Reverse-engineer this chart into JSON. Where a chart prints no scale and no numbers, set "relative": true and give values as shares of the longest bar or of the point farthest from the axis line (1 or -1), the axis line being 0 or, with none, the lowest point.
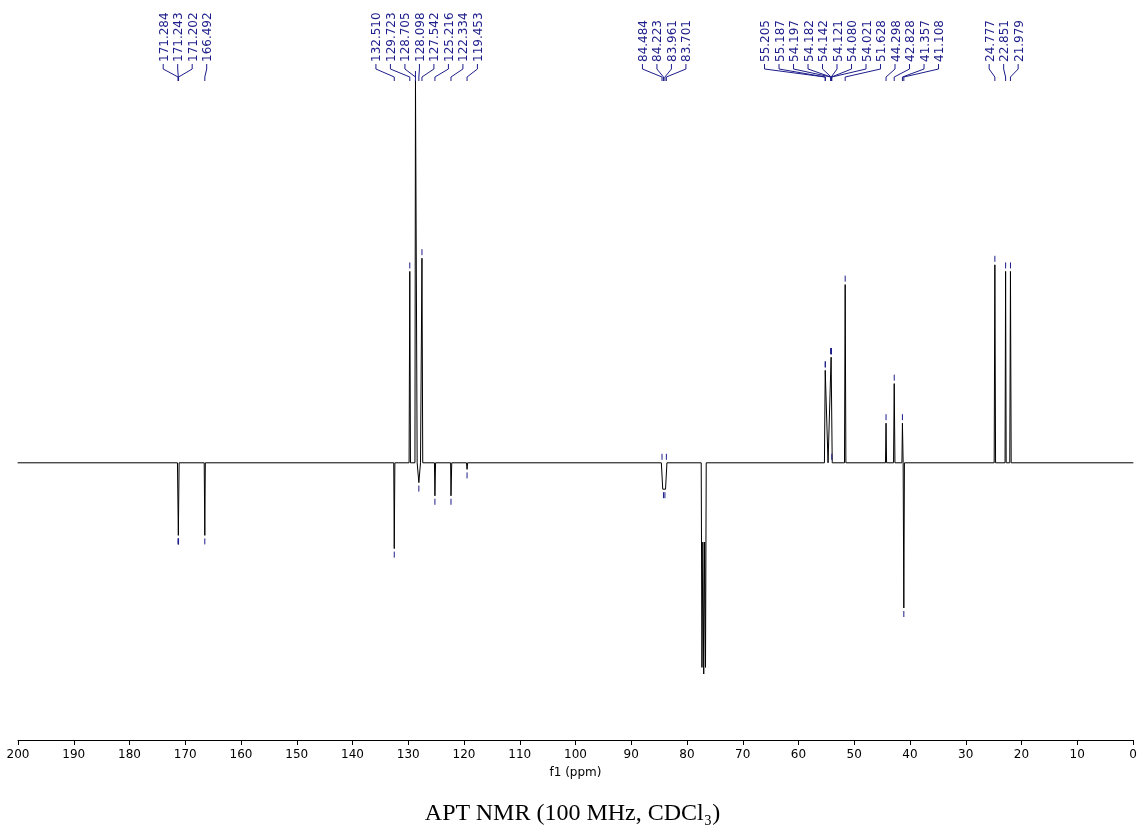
{
  "chart_data": {
    "type": "line",
    "title": "APT NMR (100 MHz, CDCl₃)",
    "xlabel": "f1 (ppm)",
    "relative": true,
    "xlim": [
      200,
      0
    ],
    "xticks": [
      200,
      190,
      180,
      170,
      160,
      150,
      140,
      130,
      120,
      110,
      100,
      90,
      80,
      70,
      60,
      50,
      40,
      30,
      20,
      10,
      0
    ],
    "tick_labels": "x",
    "grid": false,
    "marker": "none",
    "line_style": "solid",
    "series": [
      {
        "color": "#000000",
        "x": [
          200,
          171.4,
          171.24,
          171.1,
          166.6,
          166.492,
          166.4,
          132.6,
          132.51,
          132.4,
          129.85,
          129.723,
          129.6,
          128.8,
          128.705,
          128.4,
          128.098,
          127.8,
          127.542,
          127.4,
          125.3,
          125.216,
          125.1,
          122.4,
          122.334,
          122.2,
          119.55,
          119.453,
          119.35,
          84.6,
          84.35,
          83.85,
          83.6,
          77.45,
          77.32,
          77.16,
          77.0,
          76.84,
          76.68,
          76.55,
          55.35,
          55.205,
          54.7,
          54.15,
          53.95,
          51.75,
          51.628,
          51.5,
          44.4,
          44.298,
          44.2,
          42.95,
          42.828,
          42.7,
          41.45,
          41.357,
          41.23,
          41.108,
          41.0,
          24.9,
          24.777,
          24.65,
          22.95,
          22.851,
          22.75,
          22.1,
          21.979,
          21.85,
          0
        ],
        "values": [
          0.42,
          0.42,
          0.31,
          0.42,
          0.42,
          0.31,
          0.42,
          0.42,
          0.29,
          0.42,
          0.42,
          0.71,
          0.42,
          0.42,
          1,
          0.42,
          0.39,
          0.42,
          0.73,
          0.42,
          0.42,
          0.37,
          0.42,
          0.42,
          0.37,
          0.42,
          0.42,
          0.41,
          0.42,
          0.42,
          0.38,
          0.38,
          0.42,
          0.42,
          0.11,
          0.3,
          0.1,
          0.3,
          0.11,
          0.42,
          0.42,
          0.56,
          0.42,
          0.58,
          0.42,
          0.42,
          0.69,
          0.42,
          0.42,
          0.48,
          0.42,
          0.42,
          0.54,
          0.42,
          0.42,
          0.48,
          0.42,
          0.2,
          0.42,
          0.42,
          0.72,
          0.42,
          0.42,
          0.71,
          0.42,
          0.42,
          0.71,
          0.42,
          0.42
        ]
      }
    ],
    "annotations": [
      {
        "text": "171.284",
        "x": 171.284
      },
      {
        "text": "171.243",
        "x": 171.243
      },
      {
        "text": "171.202",
        "x": 171.202
      },
      {
        "text": "166.492",
        "x": 166.492
      },
      {
        "text": "132.510",
        "x": 132.51
      },
      {
        "text": "129.723",
        "x": 129.723
      },
      {
        "text": "128.705",
        "x": 128.705
      },
      {
        "text": "128.098",
        "x": 128.098
      },
      {
        "text": "127.542",
        "x": 127.542
      },
      {
        "text": "125.216",
        "x": 125.216
      },
      {
        "text": "122.334",
        "x": 122.334
      },
      {
        "text": "119.453",
        "x": 119.453
      },
      {
        "text": "84.484",
        "x": 84.484
      },
      {
        "text": "84.223",
        "x": 84.223
      },
      {
        "text": "83.961",
        "x": 83.961
      },
      {
        "text": "83.701",
        "x": 83.701
      },
      {
        "text": "55.205",
        "x": 55.205
      },
      {
        "text": "55.187",
        "x": 55.187
      },
      {
        "text": "54.197",
        "x": 54.197
      },
      {
        "text": "54.182",
        "x": 54.182
      },
      {
        "text": "54.142",
        "x": 54.142
      },
      {
        "text": "54.121",
        "x": 54.121
      },
      {
        "text": "54.080",
        "x": 54.08
      },
      {
        "text": "54.021",
        "x": 54.021
      },
      {
        "text": "51.628",
        "x": 51.628
      },
      {
        "text": "44.298",
        "x": 44.298
      },
      {
        "text": "42.828",
        "x": 42.828
      },
      {
        "text": "41.357",
        "x": 41.357
      },
      {
        "text": "41.108",
        "x": 41.108
      },
      {
        "text": "24.777",
        "x": 24.777
      },
      {
        "text": "22.851",
        "x": 22.851
      },
      {
        "text": "21.979",
        "x": 21.979
      }
    ]
  }
}
